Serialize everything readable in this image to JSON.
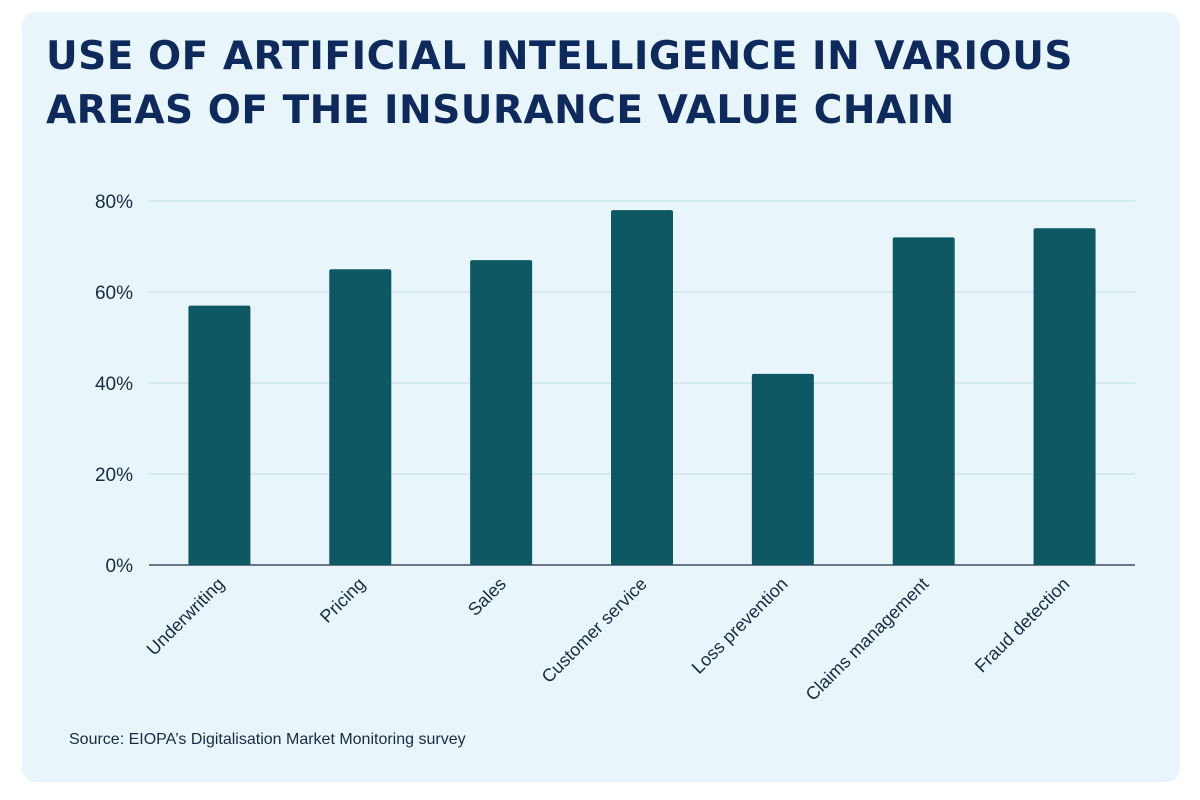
{
  "chart_data": {
    "type": "bar",
    "title_lines": [
      "USE OF ARTIFICIAL INTELLIGENCE IN VARIOUS",
      "AREAS OF THE INSURANCE VALUE CHAIN"
    ],
    "categories": [
      "Underwriting",
      "Pricing",
      "Sales",
      "Customer service",
      "Loss prevention",
      "Claims management",
      "Fraud detection"
    ],
    "values": [
      57,
      65,
      67,
      78,
      42,
      72,
      74
    ],
    "value_unit": "%",
    "ylim": [
      0,
      80
    ],
    "yticks": [
      0,
      20,
      40,
      60,
      80
    ],
    "ytick_labels": [
      "0%",
      "20%",
      "40%",
      "60%",
      "80%"
    ],
    "xlabel": "",
    "ylabel": "",
    "grid": true,
    "bar_color": "#0d5862",
    "grid_color": "#c5dde3",
    "axis_color": "#1b2a44"
  },
  "source": "Source: EIOPA’s Digitalisation Market Monitoring survey"
}
